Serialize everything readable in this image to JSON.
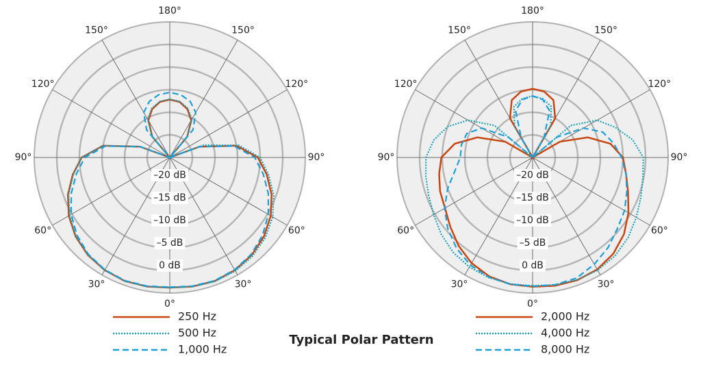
{
  "title": "Typical Polar Pattern",
  "chart_data": [
    {
      "type": "polar",
      "rlim": [
        -25,
        5
      ],
      "rticks": [
        {
          "value": 0,
          "label": "0 dB"
        },
        {
          "value": -5,
          "label": "–5 dB"
        },
        {
          "value": -10,
          "label": "–10 dB"
        },
        {
          "value": -15,
          "label": "–15 dB"
        },
        {
          "value": -20,
          "label": "–20 dB"
        }
      ],
      "thetaticks": [
        {
          "value": 0,
          "label": "0°"
        },
        {
          "value": 30,
          "label": "30°"
        },
        {
          "value": 60,
          "label": "60°"
        },
        {
          "value": 90,
          "label": "90°"
        },
        {
          "value": 120,
          "label": "120°"
        },
        {
          "value": 150,
          "label": "150°"
        },
        {
          "value": 180,
          "label": "180°"
        },
        {
          "value": 210,
          "label": "150°"
        },
        {
          "value": 240,
          "label": "120°"
        },
        {
          "value": 270,
          "label": "90°"
        },
        {
          "value": 300,
          "label": "60°"
        },
        {
          "value": 330,
          "label": "30°"
        }
      ],
      "theta": [
        0,
        10,
        20,
        30,
        40,
        50,
        60,
        70,
        80,
        90,
        100,
        110,
        120,
        130,
        140,
        150,
        160,
        170,
        180,
        190,
        200,
        210,
        220,
        230,
        240,
        250,
        260,
        270,
        280,
        290,
        300,
        310,
        320,
        330,
        340,
        350
      ],
      "legend": "bottom",
      "series": [
        {
          "name": "250 Hz",
          "color": "#c8450f",
          "dash": "solid",
          "values": [
            3.8,
            4.0,
            4.1,
            3.8,
            3.2,
            2.2,
            0.8,
            -1.0,
            -3.2,
            -5.5,
            -10,
            -18,
            -25,
            -25,
            -19,
            -15.5,
            -13.6,
            -12.5,
            -12.2,
            -12.5,
            -13.6,
            -15.5,
            -19,
            -25,
            -25,
            -18,
            -10,
            -5.5,
            -3.2,
            -1.0,
            0.8,
            2.2,
            3.2,
            3.8,
            4.1,
            4.0
          ]
        },
        {
          "name": "500 Hz",
          "color": "#1aa3b8",
          "dash": "dotted",
          "values": [
            3.8,
            4.0,
            4.2,
            4.0,
            3.5,
            2.6,
            1.3,
            -0.5,
            -2.8,
            -5.0,
            -9.5,
            -17,
            -25,
            -25,
            -19,
            -15.2,
            -13.4,
            -12.4,
            -12.1,
            -12.4,
            -13.4,
            -15.2,
            -19,
            -25,
            -25,
            -18,
            -10,
            -5.5,
            -3.3,
            -1.2,
            0.6,
            2.1,
            3.1,
            3.8,
            4.1,
            4.0
          ]
        },
        {
          "name": "1,000 Hz",
          "color": "#1a9fd9",
          "dash": "dashed",
          "values": [
            3.7,
            3.9,
            4.0,
            3.7,
            3.0,
            1.8,
            0.2,
            -1.8,
            -4.0,
            -6.2,
            -10.5,
            -18,
            -25,
            -25,
            -17,
            -13.5,
            -11.8,
            -10.9,
            -10.6,
            -10.9,
            -11.8,
            -13.5,
            -17,
            -25,
            -25,
            -18,
            -10.5,
            -6.2,
            -4.0,
            -1.8,
            0.2,
            1.8,
            3.0,
            3.7,
            4.0,
            3.9
          ]
        }
      ]
    },
    {
      "type": "polar",
      "rlim": [
        -25,
        5
      ],
      "rticks": [
        {
          "value": 0,
          "label": "0 dB"
        },
        {
          "value": -5,
          "label": "–5 dB"
        },
        {
          "value": -10,
          "label": "–10 dB"
        },
        {
          "value": -15,
          "label": "–15 dB"
        },
        {
          "value": -20,
          "label": "–20 dB"
        }
      ],
      "thetaticks": [
        {
          "value": 0,
          "label": "0°"
        },
        {
          "value": 30,
          "label": "30°"
        },
        {
          "value": 60,
          "label": "60°"
        },
        {
          "value": 90,
          "label": "90°"
        },
        {
          "value": 120,
          "label": "120°"
        },
        {
          "value": 150,
          "label": "150°"
        },
        {
          "value": 180,
          "label": "180°"
        },
        {
          "value": 210,
          "label": "150°"
        },
        {
          "value": 240,
          "label": "120°"
        },
        {
          "value": 270,
          "label": "90°"
        },
        {
          "value": 300,
          "label": "60°"
        },
        {
          "value": 330,
          "label": "30°"
        }
      ],
      "theta": [
        0,
        10,
        20,
        30,
        40,
        50,
        60,
        70,
        80,
        90,
        100,
        110,
        120,
        130,
        140,
        150,
        160,
        170,
        180,
        190,
        200,
        210,
        220,
        230,
        240,
        250,
        260,
        270,
        280,
        290,
        300,
        310,
        320,
        330,
        340,
        350
      ],
      "legend": "bottom",
      "series": [
        {
          "name": "2,000 Hz",
          "color": "#c8450f",
          "dash": "solid",
          "values": [
            3.6,
            3.8,
            3.9,
            3.6,
            2.8,
            1.4,
            -0.5,
            -2.5,
            -4.0,
            -5.0,
            -7.5,
            -12,
            -18,
            -25,
            -25,
            -15,
            -11.5,
            -10.2,
            -9.8,
            -10.2,
            -11.5,
            -15,
            -25,
            -25,
            -18,
            -12,
            -7.5,
            -4.8,
            -4.0,
            -3.2,
            -2.6,
            -1.2,
            0.5,
            2.0,
            3.0,
            3.5
          ]
        },
        {
          "name": "4,000 Hz",
          "color": "#1aa3b8",
          "dash": "dotted",
          "values": [
            3.4,
            3.6,
            3.8,
            3.8,
            3.4,
            2.6,
            1.5,
            0.5,
            -0.2,
            -0.5,
            -2.5,
            -5.5,
            -8.5,
            -14,
            -25,
            -17,
            -13,
            -11.8,
            -11.4,
            -11.8,
            -13,
            -17,
            -25,
            -14,
            -8.5,
            -5,
            -2.8,
            -1.4,
            -1.0,
            -0.5,
            0.3,
            1.4,
            2.4,
            3.0,
            3.3,
            3.4
          ]
        },
        {
          "name": "8,000 Hz",
          "color": "#1a9fd9",
          "dash": "dashed",
          "values": [
            3.5,
            3.6,
            3.4,
            2.3,
            1.0,
            -0.5,
            -1.5,
            -2.8,
            -4.0,
            -5.3,
            -6.8,
            -8.5,
            -12,
            -18,
            -25,
            -20,
            -14,
            -12,
            -11.4,
            -12,
            -14,
            -20,
            -25,
            -18,
            -12,
            -9.5,
            -9,
            -9,
            -7.5,
            -5,
            -2.5,
            -0.5,
            1.2,
            2.5,
            3.2,
            3.5
          ]
        }
      ]
    }
  ]
}
